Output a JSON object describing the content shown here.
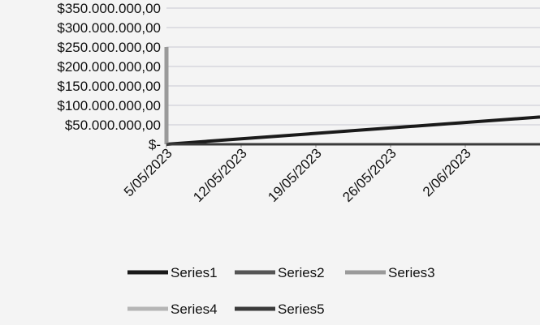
{
  "chart_data": {
    "type": "line",
    "x_ticks": [
      "5/05/2023",
      "12/05/2023",
      "19/05/2023",
      "26/05/2023",
      "2/06/2023"
    ],
    "y_ticks": [
      "$-",
      "$50.000.000,00",
      "$100.000.000,00",
      "$150.000.000,00",
      "$200.000.000,00",
      "$250.000.000,00",
      "$300.000.000,00",
      "$350.000.000,00"
    ],
    "ylim": [
      0,
      350000000
    ],
    "xlim": [
      "5/05/2023",
      "9/06/2023"
    ],
    "grid": true,
    "legend_position": "bottom",
    "series": [
      {
        "name": "Series1",
        "color": "#1a1a1a",
        "points": [
          [
            "5/05/2023",
            0
          ],
          [
            "9/06/2023",
            70000000
          ]
        ]
      },
      {
        "name": "Series2",
        "color": "#555555",
        "points": [
          [
            "5/05/2023",
            0
          ],
          [
            "9/06/2023",
            0
          ]
        ]
      },
      {
        "name": "Series3",
        "color": "#9a9a9a",
        "points": [
          [
            "5/05/2023",
            0
          ],
          [
            "5/05/2023",
            250000000
          ]
        ]
      },
      {
        "name": "Series4",
        "color": "#b5b5b5",
        "points": []
      },
      {
        "name": "Series5",
        "color": "#3a3a3a",
        "points": [
          [
            "5/05/2023",
            0
          ],
          [
            "9/06/2023",
            0
          ]
        ]
      }
    ]
  }
}
